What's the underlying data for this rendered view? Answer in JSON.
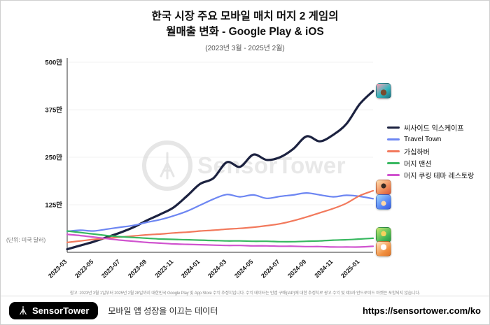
{
  "header": {
    "title_line1": "한국 시장 주요 모바일 매치 머지 2 게임의",
    "title_line2": "월매출 변화 - Google Play & iOS",
    "subtitle": "(2023년 3월 - 2025년 2월)"
  },
  "chart_data": {
    "type": "line",
    "title": "한국 시장 주요 모바일 매치 머지 2 게임의 월매출 변화 - Google Play & iOS",
    "subtitle": "(2023년 3월 - 2025년 2월)",
    "unit_label": "(단위: 미국 달러)",
    "ylim": [
      0,
      500
    ],
    "y_tick_values": [
      125,
      250,
      375,
      500
    ],
    "y_ticks": [
      "125만",
      "250만",
      "375만",
      "500만"
    ],
    "x": [
      "2023-03",
      "2023-04",
      "2023-05",
      "2023-06",
      "2023-07",
      "2023-08",
      "2023-09",
      "2023-10",
      "2023-11",
      "2023-12",
      "2024-01",
      "2024-02",
      "2024-03",
      "2024-04",
      "2024-05",
      "2024-06",
      "2024-07",
      "2024-08",
      "2024-09",
      "2024-10",
      "2024-11",
      "2024-12",
      "2025-01",
      "2025-02"
    ],
    "x_tick_labels": [
      "2023-03",
      "2023-05",
      "2023-07",
      "2023-09",
      "2023-11",
      "2024-01",
      "2024-03",
      "2024-05",
      "2024-07",
      "2024-09",
      "2024-11",
      "2025-01"
    ],
    "series": [
      {
        "name": "씨사이드 익스케이프",
        "color": "#1c2240",
        "width": 3.2,
        "values": [
          8,
          18,
          28,
          40,
          52,
          66,
          84,
          100,
          118,
          148,
          180,
          195,
          237,
          225,
          257,
          243,
          250,
          272,
          305,
          292,
          309,
          338,
          390,
          424
        ]
      },
      {
        "name": "Travel Town",
        "color": "#6d86f2",
        "width": 2.2,
        "values": [
          55,
          58,
          56,
          61,
          66,
          71,
          79,
          86,
          96,
          108,
          124,
          140,
          152,
          146,
          151,
          142,
          147,
          151,
          156,
          151,
          146,
          150,
          147,
          141
        ]
      },
      {
        "name": "가십하버",
        "color": "#f2795c",
        "width": 2.2,
        "values": [
          26,
          30,
          34,
          37,
          40,
          43,
          46,
          48,
          51,
          53,
          56,
          58,
          61,
          63,
          66,
          70,
          75,
          83,
          93,
          104,
          115,
          129,
          149,
          162
        ]
      },
      {
        "name": "머지 맨션",
        "color": "#38b860",
        "width": 2.2,
        "values": [
          56,
          52,
          48,
          44,
          41,
          39,
          37,
          35,
          34,
          33,
          32,
          31,
          30,
          30,
          29,
          29,
          28,
          28,
          29,
          30,
          32,
          33,
          35,
          37
        ]
      },
      {
        "name": "머지 쿠킹 테마 레스토랑",
        "color": "#d053cf",
        "width": 2.2,
        "values": [
          47,
          44,
          40,
          36,
          32,
          29,
          26,
          24,
          22,
          21,
          20,
          19,
          18,
          18,
          17,
          17,
          16,
          16,
          15,
          15,
          14,
          14,
          14,
          16
        ]
      }
    ],
    "end_icons": [
      {
        "name": "seaside-escape",
        "series": 0,
        "dy": 0
      },
      {
        "name": "gossip-harbor",
        "series": 2,
        "dy": -5
      },
      {
        "name": "travel-town",
        "series": 1,
        "dy": 5
      },
      {
        "name": "merge-mansion",
        "series": 3,
        "dy": -5
      },
      {
        "name": "merge-cooking",
        "series": 4,
        "dy": 4
      }
    ]
  },
  "watermark": {
    "text": "SensorTower"
  },
  "footnote": "참고: 2023년 3월 1일부터 2025년 2월 28일까지 대한민국 Google Play 및 App Store 수익 추정치입니다. 수익 데이터는 인앱 구매(IAP)에 대한 추정치로 광고 수익 및 제3자 안드로이드 마켓은 포함되지 않습니다.",
  "footer": {
    "logo_text": "SensorTower",
    "tagline": "모바일 앱 성장을 이끄는 데이터",
    "url": "https://sensortower.com/ko"
  }
}
